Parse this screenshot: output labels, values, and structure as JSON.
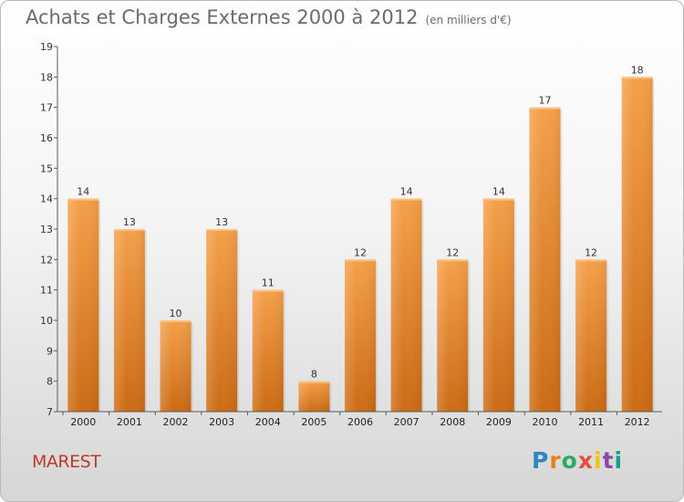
{
  "header": {
    "title": "Achats et Charges Externes 2000 à 2012",
    "subtitle": "(en milliers d'€)"
  },
  "footer": {
    "place": "MAREST",
    "logo": "Proxiti"
  },
  "colors": {
    "bar_top": "#f5a04a",
    "bar_bottom": "#cc6b14",
    "place": "#c0392b"
  },
  "chart_data": {
    "type": "bar",
    "title": "Achats et Charges Externes 2000 à 2012",
    "subtitle": "(en milliers d'€)",
    "categories": [
      "2000",
      "2001",
      "2002",
      "2003",
      "2004",
      "2005",
      "2006",
      "2007",
      "2008",
      "2009",
      "2010",
      "2011",
      "2012"
    ],
    "values": [
      14,
      13,
      10,
      13,
      11,
      8,
      12,
      14,
      12,
      14,
      17,
      12,
      18
    ],
    "ylim": [
      7,
      19
    ],
    "yticks": [
      7,
      8,
      9,
      10,
      11,
      12,
      13,
      14,
      15,
      16,
      17,
      18,
      19
    ],
    "grid": false,
    "legend": "none"
  }
}
